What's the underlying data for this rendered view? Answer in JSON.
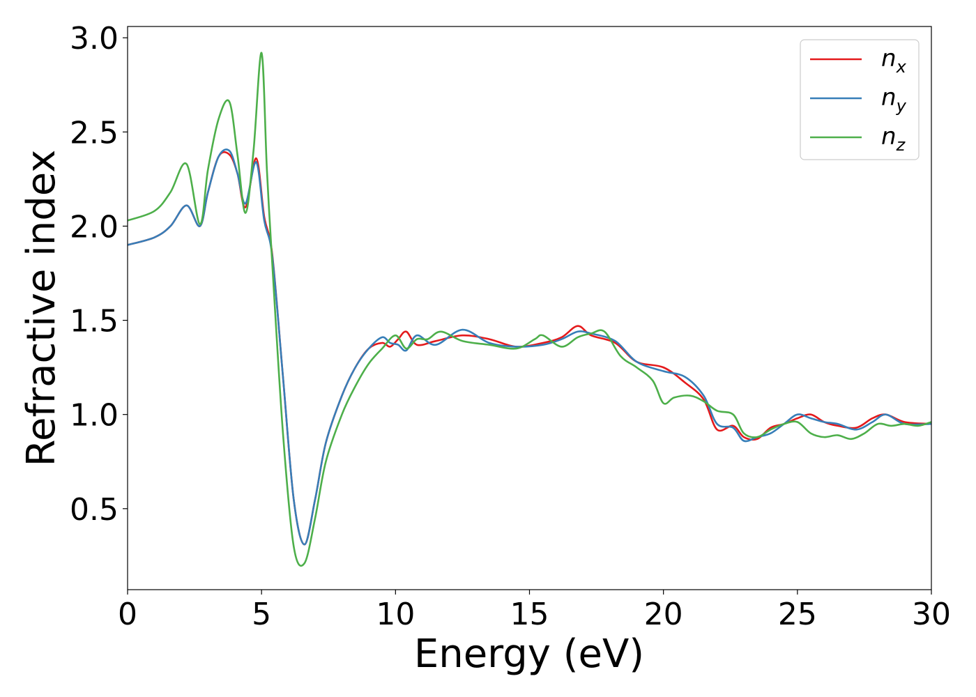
{
  "chart_data": {
    "type": "line",
    "title": "",
    "xlabel": "Energy (eV)",
    "ylabel": "Refractive index",
    "xlim": [
      0,
      30
    ],
    "ylim": [
      0.07,
      3.06
    ],
    "xticks": [
      "0",
      "5",
      "10",
      "15",
      "20",
      "25",
      "30"
    ],
    "yticks": [
      "0.5",
      "1.0",
      "1.5",
      "2.0",
      "2.5",
      "3.0"
    ],
    "grid": false,
    "legend_position": "top-right",
    "series": [
      {
        "name": "n",
        "subscript": "x",
        "color": "#e41a1c",
        "x": [
          0,
          1.0,
          1.6,
          2.2,
          2.7,
          3.0,
          3.4,
          3.8,
          4.1,
          4.4,
          4.8,
          5.1,
          5.4,
          5.8,
          6.2,
          6.6,
          7.0,
          7.4,
          8.0,
          8.5,
          9.0,
          9.5,
          9.8,
          10.1,
          10.4,
          10.8,
          11.5,
          12.5,
          13.5,
          14.5,
          15.5,
          16.2,
          16.8,
          17.3,
          18.2,
          19.0,
          20.0,
          20.8,
          21.5,
          22.0,
          22.6,
          23.0,
          23.5,
          24.0,
          24.5,
          25.0,
          25.5,
          26.0,
          26.5,
          27.2,
          27.8,
          28.3,
          29.0,
          30.0
        ],
        "y": [
          1.9,
          1.94,
          2.0,
          2.11,
          2.0,
          2.18,
          2.37,
          2.38,
          2.28,
          2.1,
          2.36,
          2.05,
          1.85,
          1.2,
          0.55,
          0.31,
          0.55,
          0.85,
          1.1,
          1.25,
          1.35,
          1.38,
          1.36,
          1.4,
          1.44,
          1.37,
          1.39,
          1.42,
          1.4,
          1.36,
          1.38,
          1.41,
          1.47,
          1.42,
          1.38,
          1.28,
          1.25,
          1.17,
          1.08,
          0.92,
          0.94,
          0.88,
          0.87,
          0.93,
          0.95,
          0.98,
          1.0,
          0.96,
          0.94,
          0.93,
          0.98,
          1.0,
          0.96,
          0.95
        ]
      },
      {
        "name": "n",
        "subscript": "y",
        "color": "#377eb8",
        "x": [
          0,
          1.0,
          1.6,
          2.2,
          2.7,
          3.0,
          3.4,
          3.8,
          4.1,
          4.4,
          4.8,
          5.1,
          5.4,
          5.8,
          6.2,
          6.6,
          7.0,
          7.4,
          8.0,
          8.5,
          9.0,
          9.5,
          9.8,
          10.1,
          10.4,
          10.8,
          11.5,
          12.5,
          13.5,
          14.5,
          15.5,
          16.2,
          16.8,
          17.3,
          18.2,
          19.0,
          20.0,
          20.8,
          21.5,
          22.0,
          22.6,
          23.0,
          23.5,
          24.0,
          24.5,
          25.0,
          25.5,
          26.0,
          26.5,
          27.2,
          27.8,
          28.3,
          29.0,
          30.0
        ],
        "y": [
          1.9,
          1.94,
          2.0,
          2.11,
          2.0,
          2.18,
          2.37,
          2.4,
          2.28,
          2.12,
          2.34,
          2.03,
          1.84,
          1.2,
          0.55,
          0.31,
          0.55,
          0.85,
          1.1,
          1.25,
          1.35,
          1.41,
          1.38,
          1.37,
          1.34,
          1.42,
          1.37,
          1.45,
          1.38,
          1.36,
          1.37,
          1.4,
          1.44,
          1.43,
          1.39,
          1.28,
          1.23,
          1.2,
          1.1,
          0.95,
          0.93,
          0.86,
          0.88,
          0.9,
          0.95,
          1.0,
          0.98,
          0.96,
          0.95,
          0.92,
          0.96,
          1.0,
          0.95,
          0.95
        ]
      },
      {
        "name": "n",
        "subscript": "z",
        "color": "#4daf4a",
        "x": [
          0,
          1.0,
          1.6,
          2.2,
          2.7,
          3.0,
          3.4,
          3.8,
          4.1,
          4.4,
          4.7,
          5.0,
          5.2,
          5.4,
          5.8,
          6.2,
          6.6,
          7.0,
          7.4,
          8.0,
          8.5,
          9.0,
          9.5,
          10.0,
          10.4,
          10.8,
          11.2,
          11.7,
          12.5,
          13.5,
          14.5,
          15.2,
          15.5,
          16.2,
          16.8,
          17.3,
          17.8,
          18.4,
          19.0,
          19.6,
          20.0,
          20.4,
          21.0,
          21.5,
          22.0,
          22.6,
          23.0,
          23.5,
          24.0,
          24.5,
          25.0,
          25.5,
          26.0,
          26.5,
          27.0,
          27.5,
          28.0,
          28.5,
          29.0,
          29.5,
          30.0
        ],
        "y": [
          2.03,
          2.08,
          2.18,
          2.33,
          2.01,
          2.3,
          2.57,
          2.66,
          2.38,
          2.07,
          2.4,
          2.92,
          2.3,
          1.8,
          0.9,
          0.3,
          0.21,
          0.45,
          0.75,
          1.0,
          1.15,
          1.27,
          1.35,
          1.42,
          1.35,
          1.4,
          1.4,
          1.44,
          1.39,
          1.37,
          1.35,
          1.4,
          1.42,
          1.36,
          1.41,
          1.43,
          1.44,
          1.31,
          1.25,
          1.18,
          1.06,
          1.09,
          1.1,
          1.07,
          1.02,
          1.0,
          0.9,
          0.88,
          0.92,
          0.95,
          0.96,
          0.9,
          0.88,
          0.89,
          0.87,
          0.9,
          0.95,
          0.94,
          0.95,
          0.94,
          0.96
        ]
      }
    ]
  }
}
